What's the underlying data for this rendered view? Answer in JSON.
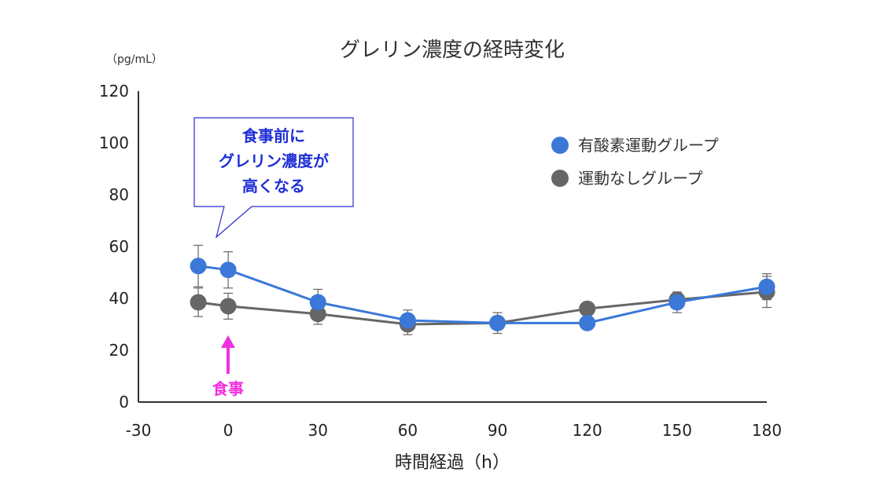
{
  "chart_data": {
    "type": "line",
    "title": "グレリン濃度の経時変化",
    "unit_label": "（pg/mL）",
    "xlabel": "時間経過（h）",
    "ylabel": "",
    "x": [
      -10,
      0,
      30,
      60,
      90,
      120,
      150,
      180
    ],
    "xlim": [
      -30,
      180
    ],
    "ylim": [
      0,
      120
    ],
    "x_ticks": [
      -30,
      0,
      30,
      60,
      90,
      120,
      150,
      180
    ],
    "y_ticks": [
      0,
      20,
      40,
      60,
      80,
      100,
      120
    ],
    "grid": false,
    "legend_position": "top-right",
    "series": [
      {
        "name": "有酸素運動グループ",
        "color": "#3b78d8",
        "values": [
          52.5,
          51,
          38.5,
          31.5,
          30.5,
          30.5,
          38.5,
          44.5
        ],
        "error": [
          8,
          7,
          5,
          4,
          4,
          0,
          4,
          5
        ]
      },
      {
        "name": "運動なしグループ",
        "color": "#666666",
        "values": [
          38.5,
          37,
          34,
          30,
          30.5,
          36,
          39.5,
          42.5
        ],
        "error": [
          5.5,
          5,
          4,
          4,
          0,
          0,
          0,
          6
        ]
      }
    ],
    "annotations": {
      "callout_lines": [
        "食事前に",
        "グレリン濃度が",
        "高くなる"
      ],
      "meal_label": "食事",
      "callout_color": "#1e2fd6",
      "meal_color": "#f030e0"
    }
  }
}
